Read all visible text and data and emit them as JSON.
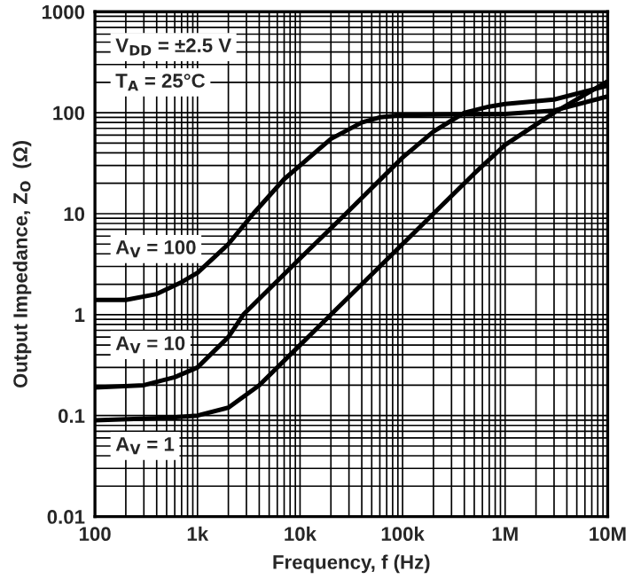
{
  "chart_data": {
    "type": "line",
    "xlabel": "Frequency, f (Hz)",
    "ylabel": "Output Impedance, Z$_{O}$  (Ω)",
    "log": "xy",
    "grid": true,
    "legend": false,
    "xlim": [
      100,
      10000000
    ],
    "ylim": [
      0.01,
      1000
    ],
    "xticks": [
      100,
      {
        "value": 1000,
        "label": "1k"
      },
      {
        "value": 10000,
        "label": "10k"
      },
      {
        "value": 100000,
        "label": "100k"
      },
      {
        "value": 1000000,
        "label": "1M"
      },
      {
        "value": 10000000,
        "label": "10M"
      }
    ],
    "yticks": [
      0.01,
      0.1,
      1,
      10,
      100,
      1000
    ],
    "annotations": [
      "V$_{DD}$ = ±2.5 V",
      "T$_{A}$ = 25°C",
      "A$_{V}$ = 100",
      "A$_{V}$ = 10",
      "A$_{V}$ = 1"
    ],
    "series": [
      {
        "color": "#000000",
        "x": [
          100,
          200,
          400,
          700,
          1000,
          2000,
          3500,
          7000,
          10000,
          20000,
          40000,
          60000,
          100000,
          300000,
          1000000,
          3000000,
          10000000
        ],
        "values": [
          1.4,
          1.4,
          1.6,
          2.1,
          2.6,
          5,
          10,
          22,
          30,
          55,
          80,
          90,
          95,
          96,
          97,
          105,
          145
        ]
      },
      {
        "color": "#000000",
        "x": [
          100,
          300,
          600,
          1000,
          2000,
          2800,
          10000,
          28000,
          100000,
          200000,
          400000,
          700000,
          1000000,
          3000000,
          10000000
        ],
        "values": [
          0.19,
          0.2,
          0.24,
          0.3,
          0.6,
          1,
          3.6,
          10,
          36,
          65,
          100,
          115,
          122,
          135,
          185
        ]
      },
      {
        "color": "#000000",
        "x": [
          100,
          500,
          1000,
          2000,
          4000,
          10000,
          20000,
          50000,
          200000,
          500000,
          1000000,
          3000000,
          10000000
        ],
        "values": [
          0.09,
          0.095,
          0.1,
          0.12,
          0.2,
          0.5,
          1,
          2.5,
          10,
          25,
          48,
          100,
          205
        ]
      }
    ]
  }
}
